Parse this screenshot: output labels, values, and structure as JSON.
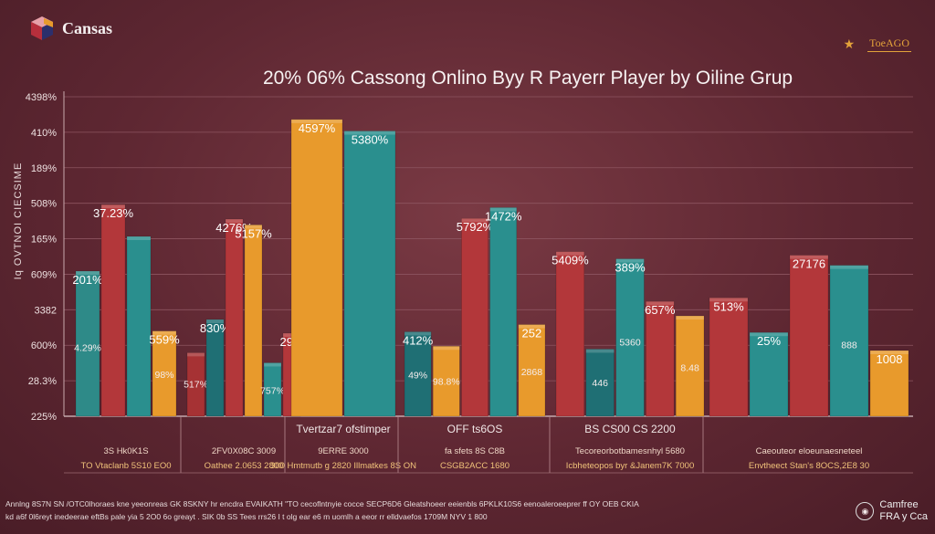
{
  "brand": {
    "logo_text": "Cansas"
  },
  "top_right": {
    "star": "★",
    "badge": "ToeAGO"
  },
  "rotated_label": "Iq OVTNOI CIECSIME",
  "footer": {
    "line1": "Annlng 8S7N  SN /OTC0lhoraes kne yeeonreas GK 8SKNY hr encdra EVAIKATH   \"TO cecoflntnyie cocce SECP6D6 Gleatshoeer eeienbls 6PKLK10S6 eenoaleroeeprer ff OY OEB CKIA",
    "line2": "kd a6f 0l6reyt inedeerae eftBs pale yia 5  2O0 6o  greayt  .  SIK 0b SS Tees rrs26 I t  olg  ear  e6 m uomlh a eeor rr  elldvaefos 1709M NYV  1 800",
    "right_line1": "Camfree",
    "right_line2": "FRA y Cca"
  },
  "chart_data": {
    "type": "bar",
    "title": "20% 06% Cassong Onlino Byy R Payerr Player by Oiline Grup",
    "y_tick_labels": [
      "4398%",
      "410%",
      "189%",
      "508%",
      "165%",
      "609%",
      "3382",
      "600%",
      "28.3%",
      "225%"
    ],
    "groups": [
      {
        "caption": "",
        "sublabel1": "3S Hk0K1S",
        "sublabel2": "TO Vtaclanb 5S10 EO0",
        "bars": [
          {
            "color": "#2e8a88",
            "value": 20.1,
            "top_label": "201%",
            "inner_label": "4.29%"
          },
          {
            "color": "#b3373a",
            "value": 29.3,
            "top_label": "37.23%",
            "inner_label": ""
          },
          {
            "color": "#2a8f8e",
            "value": 24.9,
            "top_label": "",
            "inner_label": ""
          },
          {
            "color": "#e89a2c",
            "value": 11.8,
            "top_label": "559%",
            "inner_label": "98%"
          }
        ]
      },
      {
        "caption": "",
        "sublabel1": "2FV0X08C 3009",
        "sublabel2": "Oathee 2.0653 2800",
        "bars": [
          {
            "color": "#a63234",
            "value": 8.8,
            "top_label": "",
            "inner_label": "517%"
          },
          {
            "color": "#1f6f74",
            "value": 13.4,
            "top_label": "830%",
            "inner_label": ""
          },
          {
            "color": "#b3373a",
            "value": 27.3,
            "top_label": "4276%",
            "inner_label": ""
          },
          {
            "color": "#e89a2c",
            "value": 26.5,
            "top_label": "5157%",
            "inner_label": ""
          },
          {
            "color": "#2a8f8e",
            "value": 7.4,
            "top_label": "",
            "inner_label": "757%"
          },
          {
            "color": "#b3373a",
            "value": 11.5,
            "top_label": "29%",
            "inner_label": ""
          }
        ]
      },
      {
        "caption": "Tvertzar7 ofstimper",
        "sublabel1": "9ERRE 3000",
        "sublabel2": "300 Hmtmutb g 2820 Illmatkes 8S ON",
        "bars": [
          {
            "color": "#e89a2c",
            "value": 41.1,
            "top_label": "4597%",
            "inner_label": ""
          },
          {
            "color": "#2a8f8e",
            "value": 39.5,
            "top_label": "5380%",
            "inner_label": ""
          }
        ]
      },
      {
        "caption": "OFF ts6OS",
        "sublabel1": "fa sfets 8S C8B",
        "sublabel2": "CSGB2ACC 1680",
        "bars": [
          {
            "color": "#1f6f74",
            "value": 11.7,
            "top_label": "412%",
            "inner_label": "49%"
          },
          {
            "color": "#e89a2c",
            "value": 9.7,
            "top_label": "",
            "inner_label": "98.8%"
          },
          {
            "color": "#b3373a",
            "value": 27.4,
            "top_label": "5792%",
            "inner_label": ""
          },
          {
            "color": "#2a8f8e",
            "value": 28.9,
            "top_label": "1472%",
            "inner_label": ""
          },
          {
            "color": "#e89a2c",
            "value": 12.7,
            "top_label": "252",
            "inner_label": "2868"
          }
        ]
      },
      {
        "caption": "BS CS00 CS 2200",
        "sublabel1": "Tecoreorbotbamesnhyl 5680",
        "sublabel2": "Icbheteopos byr &Janem7K 7000",
        "bars": [
          {
            "color": "#b3373a",
            "value": 22.8,
            "top_label": "5409%",
            "inner_label": ""
          },
          {
            "color": "#1f6f74",
            "value": 9.3,
            "top_label": "",
            "inner_label": "446"
          },
          {
            "color": "#2a8f8e",
            "value": 21.8,
            "top_label": "389%",
            "inner_label": "5360"
          },
          {
            "color": "#b3373a",
            "value": 15.9,
            "top_label": "657%",
            "inner_label": ""
          },
          {
            "color": "#e89a2c",
            "value": 13.9,
            "top_label": "",
            "inner_label": "8.48"
          }
        ]
      },
      {
        "caption": "",
        "sublabel1": "Caeouteor eloeunaesneteel",
        "sublabel2": "Envtheect Stan's 8OCS,2E8 30",
        "bars": [
          {
            "color": "#b3373a",
            "value": 16.4,
            "top_label": "513%",
            "inner_label": ""
          },
          {
            "color": "#2a8f8e",
            "value": 11.6,
            "top_label": "25%",
            "inner_label": ""
          },
          {
            "color": "#b3373a",
            "value": 22.3,
            "top_label": "27176",
            "inner_label": ""
          },
          {
            "color": "#2a8f8e",
            "value": 20.9,
            "top_label": "",
            "inner_label": "888"
          },
          {
            "color": "#e89a2c",
            "value": 9.1,
            "top_label": "1008",
            "inner_label": ""
          }
        ]
      }
    ],
    "ylim": [
      0,
      45
    ],
    "grid": true
  }
}
